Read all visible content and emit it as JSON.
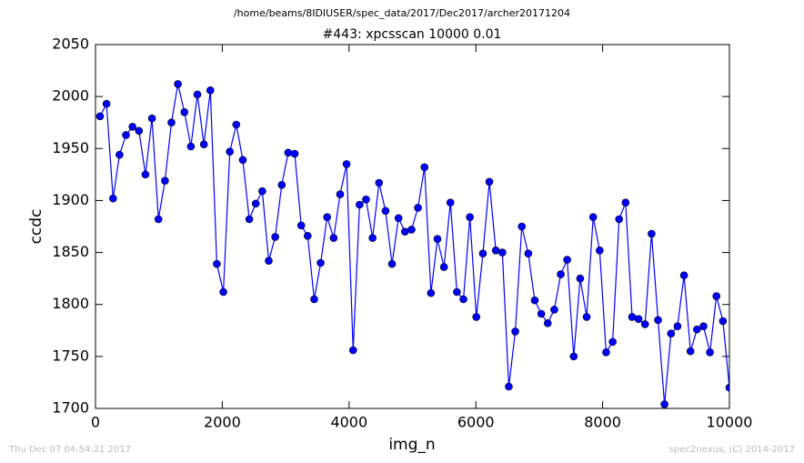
{
  "chart_data": {
    "type": "line",
    "suptitle": "/home/beams/8IDIUSER/spec_data/2017/Dec2017/archer20171204",
    "title": "#443: xpcsscan 10000 0.01",
    "x_label": "img_n",
    "y_label": "ccdc",
    "x": [
      72,
      174,
      277,
      379,
      481,
      584,
      686,
      788,
      891,
      993,
      1096,
      1198,
      1300,
      1403,
      1505,
      1607,
      1710,
      1812,
      1914,
      2017,
      2119,
      2221,
      2324,
      2426,
      2528,
      2631,
      2733,
      2835,
      2938,
      3040,
      3143,
      3245,
      3347,
      3450,
      3552,
      3654,
      3757,
      3859,
      3961,
      4064,
      4166,
      4268,
      4371,
      4473,
      4575,
      4678,
      4780,
      4882,
      4985,
      5087,
      5190,
      5292,
      5394,
      5497,
      5599,
      5701,
      5804,
      5906,
      6008,
      6111,
      6213,
      6315,
      6418,
      6520,
      6622,
      6725,
      6827,
      6929,
      7032,
      7134,
      7237,
      7339,
      7441,
      7544,
      7646,
      7748,
      7851,
      7953,
      8055,
      8158,
      8260,
      8362,
      8465,
      8567,
      8669,
      8772,
      8874,
      8976,
      9079,
      9181,
      9284,
      9386,
      9488,
      9591,
      9693,
      9795,
      9898,
      10000
    ],
    "series": [
      {
        "color": "#0000ff",
        "values": [
          1981,
          1993,
          1902,
          1944,
          1963,
          1971,
          1967,
          1925,
          1979,
          1882,
          1919,
          1975,
          2012,
          1985,
          1952,
          2002,
          1954,
          2006,
          1839,
          1812,
          1947,
          1973,
          1939,
          1882,
          1897,
          1909,
          1842,
          1865,
          1915,
          1946,
          1945,
          1876,
          1866,
          1805,
          1840,
          1884,
          1864,
          1906,
          1935,
          1756,
          1896,
          1901,
          1864,
          1917,
          1890,
          1839,
          1883,
          1870,
          1872,
          1893,
          1932,
          1811,
          1863,
          1836,
          1898,
          1812,
          1805,
          1884,
          1788,
          1849,
          1918,
          1852,
          1850,
          1721,
          1774,
          1875,
          1849,
          1804,
          1791,
          1782,
          1795,
          1829,
          1843,
          1750,
          1825,
          1788,
          1884,
          1852,
          1754,
          1764,
          1882,
          1898,
          1788,
          1786,
          1781,
          1868,
          1785,
          1704,
          1772,
          1779,
          1828,
          1755,
          1776,
          1779,
          1754,
          1808,
          1784,
          1720
        ]
      }
    ],
    "xlim": [
      0,
      10000
    ],
    "xticks": [
      0,
      2000,
      4000,
      6000,
      8000,
      10000
    ],
    "ylim": [
      1700,
      2050
    ],
    "yticks": [
      1700,
      1750,
      1800,
      1850,
      1900,
      1950,
      2000,
      2050
    ]
  },
  "footer": {
    "left": "Thu Dec 07 04:54:21 2017",
    "right": "spec2nexus, (C) 2014-2017"
  }
}
